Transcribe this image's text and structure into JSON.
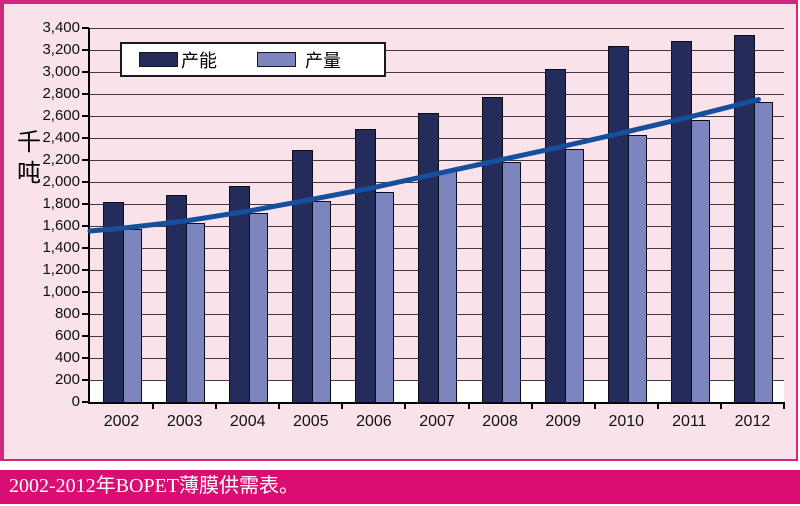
{
  "chart_data": {
    "type": "bar",
    "title": "",
    "xlabel": "",
    "ylabel": "千吨",
    "ylim": [
      0,
      3400
    ],
    "ytick_step": 200,
    "ytick_labels": [
      "0",
      "200",
      "400",
      "600",
      "800",
      "1,000",
      "1,200",
      "1,400",
      "1,600",
      "1,800",
      "2,000",
      "2,200",
      "2,400",
      "2,600",
      "2,800",
      "3,000",
      "3,200",
      "3,400"
    ],
    "categories": [
      "2002",
      "2003",
      "2004",
      "2005",
      "2006",
      "2007",
      "2008",
      "2009",
      "2010",
      "2011",
      "2012"
    ],
    "series": [
      {
        "name": "产能",
        "values": [
          1820,
          1880,
          1960,
          2290,
          2480,
          2630,
          2770,
          3030,
          3240,
          3280,
          3340
        ],
        "color": "#232c5b"
      },
      {
        "name": "产量",
        "values": [
          1570,
          1630,
          1720,
          1830,
          1910,
          2100,
          2180,
          2300,
          2430,
          2560,
          2730
        ],
        "color": "#7d85be"
      }
    ],
    "trend_line": {
      "values": [
        1580,
        1645,
        1735,
        1840,
        1950,
        2075,
        2200,
        2325,
        2455,
        2590,
        2735
      ],
      "start_value": 1555,
      "end_value": 2750,
      "color": "#164f9e"
    },
    "grid": "horizontal",
    "legend_position": "top-left-inside",
    "plot_background": "#f9e2ea",
    "base_band_color": "#ffffff"
  },
  "caption": {
    "text": "2002-2012年BOPET薄膜供需表。",
    "background": "#da0d72",
    "text_color": "#ffffff"
  },
  "colors": {
    "panel_border": "#d3267f",
    "gridline": "#40384a",
    "axis": "#000000"
  }
}
